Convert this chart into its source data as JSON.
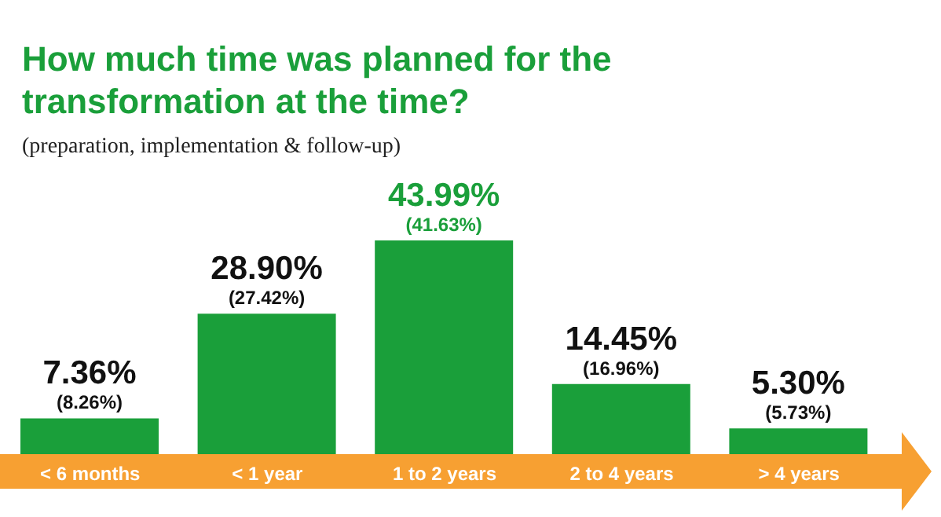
{
  "chart_data": {
    "type": "bar",
    "title": "How much time was planned for the transformation at the time?",
    "subtitle": "(preparation, implementation & follow-up)",
    "categories": [
      "< 6 months",
      "< 1 year",
      "1 to 2 years",
      "2 to 4 years",
      "> 4 years"
    ],
    "values": [
      7.36,
      28.9,
      43.99,
      14.45,
      5.3
    ],
    "color": "#1a9f3a",
    "value_labels": [
      "7.36%",
      "28.90%",
      "43.99%",
      "14.45%",
      "5.30%"
    ],
    "annotations": [
      {
        "text": "(8.26%)",
        "x": "< 6 months",
        "y": 7.36
      },
      {
        "text": "(27.42%)",
        "x": "< 1 year",
        "y": 28.9
      },
      {
        "text": "(41.63%)",
        "x": "1 to 2 years",
        "y": 43.99
      },
      {
        "text": "(16.96%)",
        "x": "2 to 4 years",
        "y": 14.45
      },
      {
        "text": "(5.73%)",
        "x": "> 4 years",
        "y": 5.3
      }
    ],
    "grid": false,
    "legend": false
  }
}
